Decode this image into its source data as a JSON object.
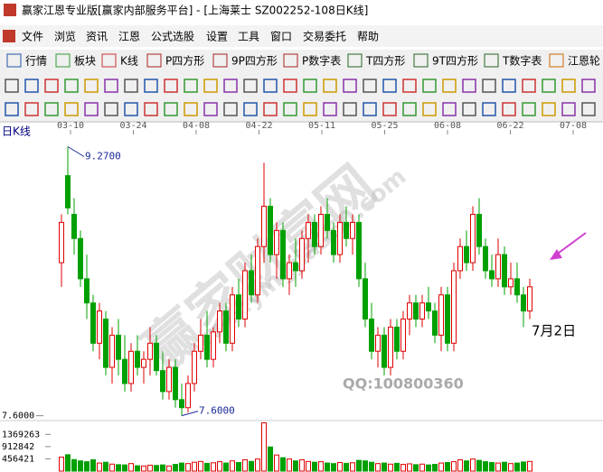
{
  "window": {
    "title": "赢家江恩专业版[赢家内部服务平台] - [上海莱士  SZ002252-108日K线]"
  },
  "menu": [
    "文件",
    "浏览",
    "资讯",
    "江恩",
    "公式选股",
    "设置",
    "工具",
    "窗口",
    "交易委托",
    "帮助"
  ],
  "toolbar": [
    "行情",
    "板块",
    "K线",
    "P四方形",
    "9P四方形",
    "P数字表",
    "T四方形",
    "9T四方形",
    "T数字表",
    "江恩轮"
  ],
  "chart_data": {
    "type": "candlestick",
    "title": "日K线",
    "date_labels": [
      "03-10",
      "03-24",
      "04-08",
      "04-22",
      "05-11",
      "05-25",
      "06-08",
      "06-22",
      "07-08"
    ],
    "open": [
      8.55,
      9.09,
      8.85,
      8.7,
      8.45,
      8.3,
      8.05,
      8.2,
      7.9,
      8.1,
      7.95,
      7.8,
      8.0,
      7.9,
      7.95,
      8.05,
      7.88,
      7.75,
      7.9,
      7.7,
      7.65,
      7.8,
      8.0,
      8.1,
      7.95,
      8.12,
      8.25,
      8.05,
      8.35,
      8.2,
      8.5,
      8.35,
      8.65,
      8.9,
      8.6,
      8.75,
      8.45,
      8.55,
      8.5,
      8.7,
      8.8,
      8.65,
      8.85,
      8.75,
      8.6,
      8.8,
      8.7,
      8.8,
      8.45,
      8.2,
      8.0,
      8.1,
      7.9,
      8.15,
      8.0,
      8.2,
      8.3,
      8.2,
      8.3,
      8.25,
      8.1,
      8.35,
      8.05,
      8.5,
      8.65,
      8.55,
      8.85,
      8.65,
      8.5,
      8.45,
      8.6,
      8.4,
      8.45,
      8.35,
      8.25
    ],
    "high": [
      8.85,
      9.27,
      8.95,
      8.75,
      8.6,
      8.35,
      8.3,
      8.25,
      8.15,
      8.2,
      8.1,
      8.05,
      8.1,
      8.0,
      8.15,
      8.1,
      8.0,
      7.95,
      7.95,
      7.8,
      7.85,
      8.05,
      8.2,
      8.25,
      8.15,
      8.3,
      8.3,
      8.4,
      8.45,
      8.55,
      8.6,
      8.7,
      9.17,
      8.95,
      8.8,
      8.8,
      8.6,
      8.7,
      8.75,
      8.85,
      8.85,
      8.9,
      8.95,
      8.8,
      8.85,
      8.9,
      8.85,
      8.85,
      8.55,
      8.3,
      8.15,
      8.15,
      8.2,
      8.2,
      8.25,
      8.35,
      8.35,
      8.35,
      8.4,
      8.3,
      8.4,
      8.4,
      8.55,
      8.7,
      8.75,
      8.9,
      8.95,
      8.7,
      8.6,
      8.7,
      8.65,
      8.55,
      8.55,
      8.4,
      8.45
    ],
    "low": [
      8.4,
      8.85,
      8.6,
      8.4,
      8.2,
      8.0,
      7.95,
      7.85,
      7.8,
      7.85,
      7.75,
      7.75,
      7.85,
      7.8,
      7.85,
      7.85,
      7.7,
      7.7,
      7.65,
      7.6,
      7.62,
      7.75,
      7.95,
      7.9,
      7.9,
      8.05,
      8.0,
      8.0,
      8.15,
      8.15,
      8.3,
      8.3,
      8.55,
      8.55,
      8.45,
      8.4,
      8.35,
      8.4,
      8.45,
      8.55,
      8.6,
      8.6,
      8.7,
      8.55,
      8.55,
      8.65,
      8.6,
      8.4,
      8.15,
      7.95,
      7.9,
      7.85,
      7.85,
      7.95,
      7.95,
      8.1,
      8.15,
      8.15,
      8.2,
      8.05,
      8.0,
      8.0,
      8.0,
      8.45,
      8.5,
      8.5,
      8.6,
      8.45,
      8.4,
      8.4,
      8.35,
      8.35,
      8.3,
      8.15,
      8.2
    ],
    "close": [
      8.8,
      8.89,
      8.7,
      8.45,
      8.3,
      8.05,
      8.25,
      7.9,
      8.1,
      7.95,
      7.8,
      8.0,
      7.9,
      7.95,
      8.05,
      7.88,
      7.75,
      7.9,
      7.7,
      7.65,
      7.8,
      8.0,
      8.1,
      7.95,
      8.12,
      8.25,
      8.05,
      8.35,
      8.2,
      8.5,
      8.35,
      8.65,
      8.9,
      8.6,
      8.75,
      8.45,
      8.55,
      8.5,
      8.7,
      8.8,
      8.65,
      8.85,
      8.75,
      8.6,
      8.8,
      8.7,
      8.8,
      8.45,
      8.2,
      8.0,
      8.1,
      7.9,
      8.15,
      8.0,
      8.2,
      8.3,
      8.2,
      8.3,
      8.25,
      8.1,
      8.35,
      8.05,
      8.5,
      8.65,
      8.55,
      8.85,
      8.65,
      8.5,
      8.45,
      8.6,
      8.4,
      8.45,
      8.35,
      8.25,
      8.4
    ],
    "volume": [
      520000,
      610000,
      430000,
      380000,
      350000,
      420000,
      300000,
      330000,
      260000,
      240000,
      230000,
      280000,
      200000,
      190000,
      220000,
      210000,
      230000,
      190000,
      250000,
      300000,
      280000,
      330000,
      360000,
      290000,
      310000,
      350000,
      300000,
      380000,
      320000,
      420000,
      360000,
      450000,
      1800000,
      900000,
      600000,
      500000,
      450000,
      380000,
      420000,
      360000,
      330000,
      350000,
      300000,
      280000,
      320000,
      290000,
      310000,
      400000,
      380000,
      330000,
      280000,
      300000,
      260000,
      290000,
      250000,
      270000,
      240000,
      260000,
      230000,
      250000,
      300000,
      320000,
      350000,
      420000,
      380000,
      450000,
      400000,
      350000,
      320000,
      300000,
      330000,
      280000,
      300000,
      340000,
      360000
    ],
    "ylim": [
      7.57,
      9.34
    ],
    "yticks": [
      {
        "value": 7.6,
        "label": "7.6000"
      }
    ],
    "vlim": [
      0,
      1850000
    ],
    "vticks": [
      1369263,
      912842,
      456421
    ],
    "high_label": {
      "value": 9.27,
      "label": "9.2700"
    },
    "low_label": {
      "value": 7.6,
      "label": "7.6000"
    },
    "up_color": "#e00000",
    "down_color": "#00a000",
    "annotations": {
      "date_note": "7月2日",
      "contact": "QQ:100800360",
      "watermark": "赢家财富网",
      "watermark_url": "www.yingjia360.com"
    }
  }
}
